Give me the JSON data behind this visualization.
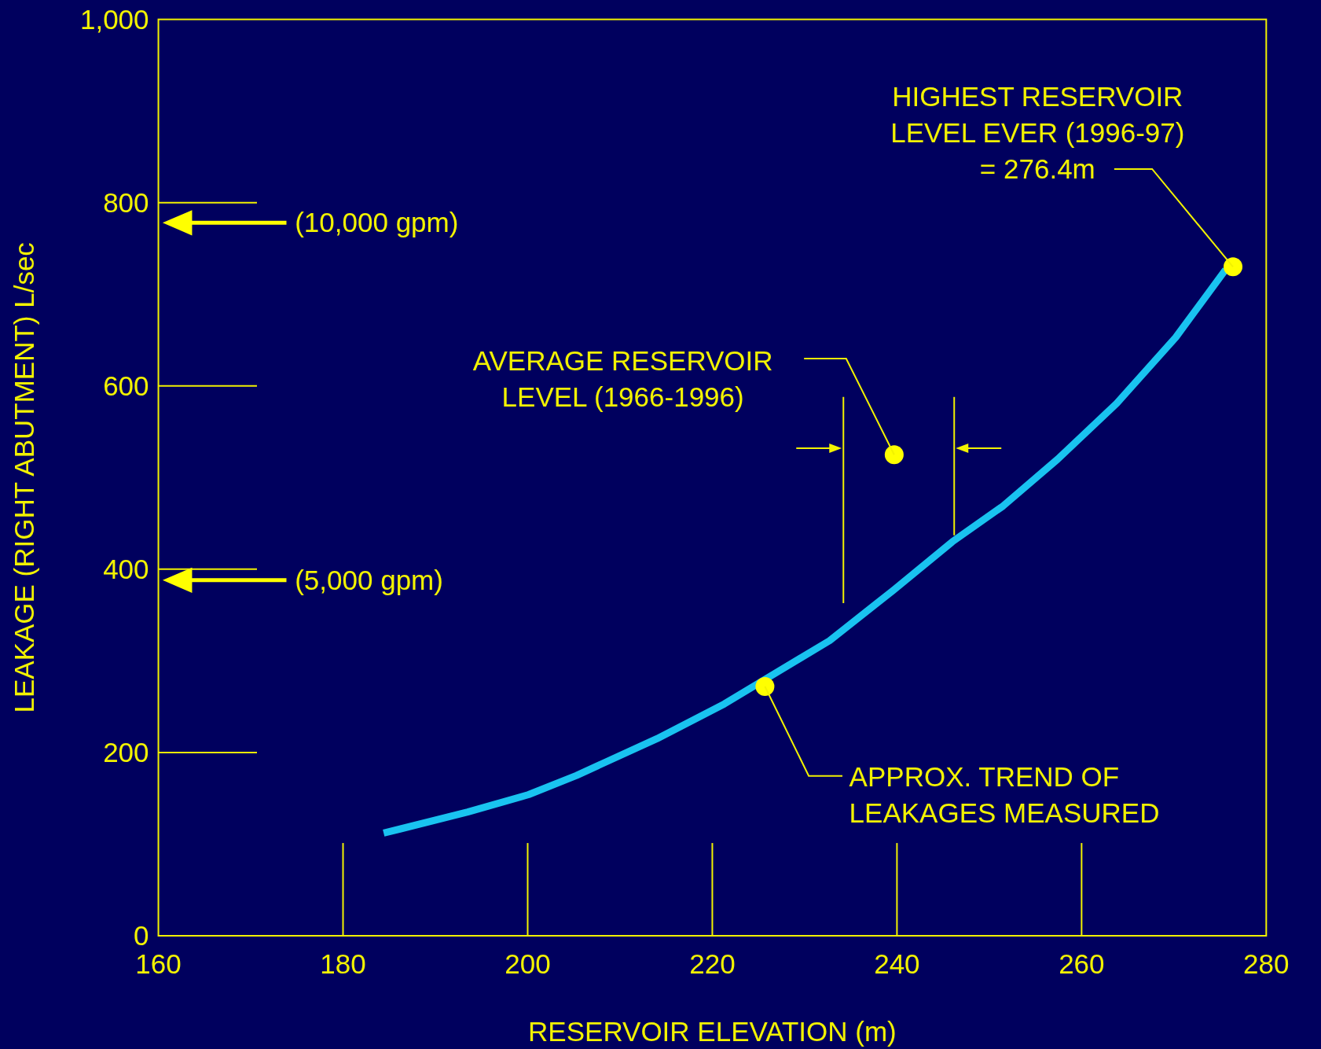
{
  "chart_data": {
    "type": "line",
    "xlabel": "RESERVOIR ELEVATION (m)",
    "ylabel": "LEAKAGE (RIGHT ABUTMENT) L/sec",
    "xlim": [
      160,
      280
    ],
    "xticks": [
      160,
      180,
      200,
      220,
      240,
      260,
      280
    ],
    "ylim": [
      0,
      1000
    ],
    "yticks": [
      0,
      200,
      400,
      600,
      {
        "value": 800,
        "label": "800"
      },
      {
        "value": 1000,
        "label": "1,000"
      }
    ],
    "grid": false,
    "series": [
      {
        "color": "#19c3f0",
        "marker": "none",
        "line_style": "solid",
        "x": [
          184.4,
          193.5,
          200.1,
          205.3,
          214.0,
          221.3,
          232.7,
          239.6,
          246.0,
          251.5,
          257.4,
          263.8,
          270.2,
          275.6
        ],
        "values": [
          112,
          135,
          154,
          175,
          215,
          253,
          322,
          377,
          430,
          469,
          520,
          581,
          653,
          727
        ]
      },
      {
        "type": "scatter",
        "color": "#ffff00",
        "marker": "circle",
        "x": [
          225.7,
          239.7,
          276.4
        ],
        "values": [
          272,
          525,
          730
        ]
      }
    ],
    "ref_lines": [
      {
        "axis": "x",
        "value": 234.2,
        "color": "#f2f200"
      },
      {
        "axis": "x",
        "value": 246.2,
        "color": "#f2f200"
      },
      {
        "axis": "y",
        "value": 778,
        "label": "(10,000 gpm)",
        "color": "#ffff00"
      },
      {
        "axis": "y",
        "value": 388,
        "label": "(5,000 gpm)",
        "color": "#ffff00"
      }
    ],
    "annotations": [
      {
        "text": "HIGHEST RESERVOIR\nLEVEL EVER (1996-97)\n= 276.4m",
        "x": 276.4,
        "y": 730
      },
      {
        "text": "AVERAGE RESERVOIR\nLEVEL (1966-1996)",
        "x": 239.7,
        "y": 525
      },
      {
        "text": "APPROX. TREND OF\nLEAKAGES MEASURED",
        "x": 225.7,
        "y": 272
      }
    ]
  }
}
